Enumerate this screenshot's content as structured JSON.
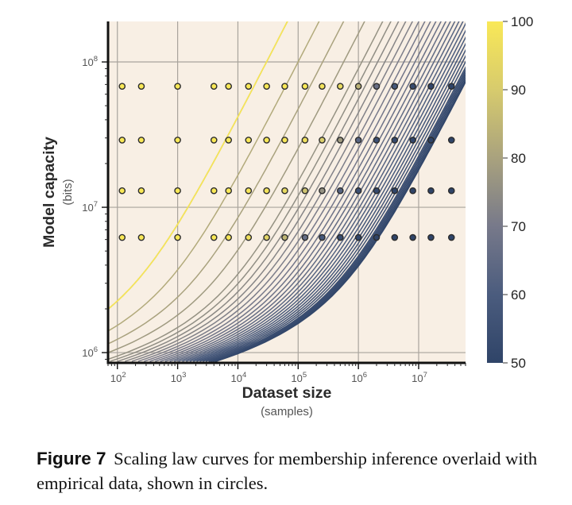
{
  "caption": {
    "label": "Figure 7",
    "text": "Scaling law curves for membership inference overlaid with empirical data, shown in circles."
  },
  "chart_data": {
    "type": "contour",
    "xlabel": "Dataset size",
    "xlabel_sub": "(samples)",
    "ylabel": "Model capacity",
    "ylabel_sub": "(bits)",
    "x_scale": "log",
    "y_scale": "log",
    "xlim": [
      70,
      60000000
    ],
    "ylim": [
      850000,
      190000000
    ],
    "x_ticks": [
      {
        "value": 100,
        "base": "10",
        "exp": "2"
      },
      {
        "value": 1000,
        "base": "10",
        "exp": "3"
      },
      {
        "value": 10000,
        "base": "10",
        "exp": "4"
      },
      {
        "value": 100000,
        "base": "10",
        "exp": "5"
      },
      {
        "value": 1000000,
        "base": "10",
        "exp": "6"
      },
      {
        "value": 10000000,
        "base": "10",
        "exp": "7"
      }
    ],
    "y_ticks": [
      {
        "value": 1000000,
        "base": "10",
        "exp": "6"
      },
      {
        "value": 10000000,
        "base": "10",
        "exp": "7"
      },
      {
        "value": 100000000,
        "base": "10",
        "exp": "8"
      }
    ],
    "grid": true,
    "background": "#f8efe4",
    "colorbar": {
      "min": 50,
      "max": 100,
      "ticks": [
        "50",
        "60",
        "70",
        "80",
        "90",
        "100"
      ],
      "colors": [
        "#2f4468",
        "#4b5c7e",
        "#77798a",
        "#a9a27e",
        "#d7cb6d",
        "#f9e857"
      ]
    },
    "contour_levels": [
      51,
      51.5,
      52,
      52.5,
      53,
      53.5,
      54,
      55,
      56,
      57,
      58,
      59,
      60,
      61,
      62,
      63,
      64,
      65,
      66,
      67,
      68,
      69,
      70,
      71,
      72,
      73,
      74,
      75,
      76,
      78,
      80,
      82,
      85,
      88,
      91,
      95,
      99
    ],
    "empirical": {
      "x": [
        120,
        250,
        1000,
        4000,
        7000,
        15000,
        30000,
        60000,
        130000,
        250000,
        500000,
        1000000,
        2000000,
        4000000,
        8000000,
        16000000,
        35000000
      ],
      "y": [
        6200000,
        13000000,
        29000000,
        68000000
      ],
      "accuracy": [
        [
          100,
          100,
          100,
          100,
          99,
          97,
          93,
          85,
          66,
          58,
          53,
          51,
          50,
          50,
          50,
          50,
          50
        ],
        [
          100,
          100,
          100,
          100,
          100,
          99,
          98,
          95,
          88,
          76,
          62,
          55,
          52,
          50,
          50,
          50,
          50
        ],
        [
          100,
          100,
          100,
          100,
          100,
          100,
          100,
          99,
          97,
          91,
          78,
          63,
          55,
          52,
          51,
          50,
          50
        ],
        [
          100,
          100,
          100,
          100,
          100,
          100,
          100,
          100,
          100,
          98,
          95,
          84,
          67,
          58,
          53,
          51,
          50
        ]
      ]
    }
  }
}
